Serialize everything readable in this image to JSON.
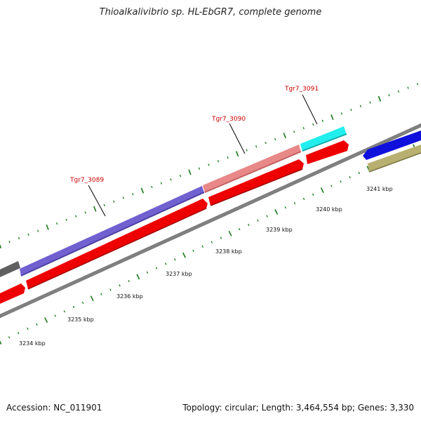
{
  "title": "Thioalkalivibrio sp. HL-EbGR7, complete genome",
  "footer": {
    "accession": "Accession: NC_011901",
    "summary": "Topology: circular; Length: 3,464,554 bp; Genes: 3,330"
  },
  "map": {
    "scale_labels": [
      "3234 kbp",
      "3235 kbp",
      "3236 kbp",
      "3237 kbp",
      "3238 kbp",
      "3239 kbp",
      "3240 kbp",
      "3241 kbp"
    ],
    "gene_labels": [
      "Tgr7_3089",
      "Tgr7_3090",
      "Tgr7_3091"
    ],
    "colors": {
      "backbone": "#808080",
      "cds_forward": "#ee0000",
      "tick": "#1a7a1a",
      "label": "#cc0000",
      "gene_3089": "#7060d0",
      "gene_3090": "#e88888",
      "gene_3091": "#22eeee",
      "blue_feature": "#1010dd",
      "olive_feature": "#b8b070",
      "gray_feature": "#606060"
    }
  }
}
